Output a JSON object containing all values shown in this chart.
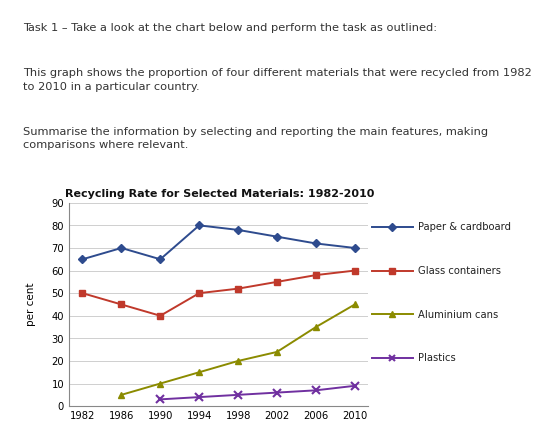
{
  "title": "Recycling Rate for Selected Materials: 1982-2010",
  "ylabel": "per cent",
  "years": [
    1982,
    1986,
    1990,
    1994,
    1998,
    2002,
    2006,
    2010
  ],
  "paper": [
    65,
    70,
    65,
    80,
    78,
    75,
    72,
    70
  ],
  "glass": [
    50,
    45,
    40,
    50,
    52,
    55,
    58,
    60
  ],
  "aluminium": [
    null,
    5,
    10,
    15,
    20,
    24,
    35,
    45
  ],
  "plastics": [
    null,
    null,
    3,
    4,
    5,
    6,
    7,
    9
  ],
  "paper_color": "#2E4B8E",
  "glass_color": "#C0392B",
  "aluminium_color": "#8B8B00",
  "plastics_color": "#7030A0",
  "ylim": [
    0,
    90
  ],
  "yticks": [
    0,
    10,
    20,
    30,
    40,
    50,
    60,
    70,
    80,
    90
  ],
  "text1": "Task 1 – Take a look at the chart below and perform the task as outlined:",
  "text2": "This graph shows the proportion of four different materials that were recycled from 1982\nto 2010 in a particular country.",
  "text3": "Summarise the information by selecting and reporting the main features, making\ncomparisons where relevant.",
  "legend_labels": [
    "Paper & cardboard",
    "Glass containers",
    "Aluminium cans",
    "Plastics"
  ],
  "background_color": "#ffffff",
  "grid_color": "#c8c8c8",
  "text_color": "#333333"
}
